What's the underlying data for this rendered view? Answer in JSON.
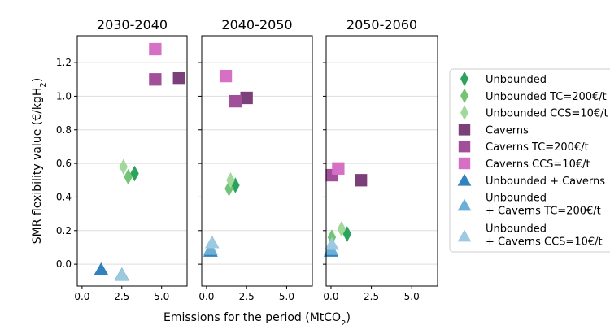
{
  "figure": {
    "ylabel_main": "SMR flexibility value (€/kgH",
    "ylabel_sub": "2",
    "ylabel_end": ")",
    "xlabel_main": "Emissions for the period (MtCO",
    "xlabel_sub": "2",
    "xlabel_end": ")"
  },
  "colors": {
    "unbounded": "#2ca25f",
    "unbounded_tc": "#74c476",
    "unbounded_ccs": "#a1d99b",
    "caverns": "#7b3f7a",
    "caverns_tc": "#a24f9a",
    "caverns_ccs": "#d670c4",
    "uc": "#3182bd",
    "uc_tc": "#6baed6",
    "uc_ccs": "#9ecae1",
    "grid": "#dddddd",
    "axes": "#000000"
  },
  "legend": {
    "placement": "right",
    "entries": [
      {
        "lines": [
          "Unbounded"
        ],
        "marker": "diamond",
        "color": "#2ca25f"
      },
      {
        "lines": [
          "Unbounded TC=200€/t"
        ],
        "marker": "diamond",
        "color": "#74c476"
      },
      {
        "lines": [
          "Unbounded CCS=10€/t"
        ],
        "marker": "diamond",
        "color": "#a1d99b"
      },
      {
        "lines": [
          "Caverns"
        ],
        "marker": "square",
        "color": "#7b3f7a"
      },
      {
        "lines": [
          "Caverns TC=200€/t"
        ],
        "marker": "square",
        "color": "#a24f9a"
      },
      {
        "lines": [
          "Caverns CCS=10€/t"
        ],
        "marker": "square",
        "color": "#d670c4"
      },
      {
        "lines": [
          "Unbounded + Caverns"
        ],
        "marker": "triangle",
        "color": "#3182bd"
      },
      {
        "lines": [
          "Unbounded",
          "+ Caverns TC=200€/t"
        ],
        "marker": "triangle",
        "color": "#6baed6"
      },
      {
        "lines": [
          "Unbounded",
          "+ Caverns CCS=10€/t"
        ],
        "marker": "triangle",
        "color": "#9ecae1"
      }
    ]
  },
  "chart_data": [
    {
      "type": "scatter",
      "title": "2030-2040",
      "xlim": [
        -0.3,
        6.6
      ],
      "ylim": [
        -0.13,
        1.36
      ],
      "xticks": [
        "0.0",
        "2.5",
        "5.0"
      ],
      "yticks": [
        "0.0",
        "0.2",
        "0.4",
        "0.6",
        "0.8",
        "1.0",
        "1.2"
      ],
      "grid": "horizontal",
      "series": [
        {
          "name": "Unbounded",
          "marker": "diamond",
          "color": "#2ca25f",
          "points": [
            [
              3.3,
              0.54
            ]
          ]
        },
        {
          "name": "Unbounded TC=200€/t",
          "marker": "diamond",
          "color": "#74c476",
          "points": [
            [
              2.9,
              0.52
            ]
          ]
        },
        {
          "name": "Unbounded CCS=10€/t",
          "marker": "diamond",
          "color": "#a1d99b",
          "points": [
            [
              2.6,
              0.58
            ]
          ]
        },
        {
          "name": "Caverns",
          "marker": "square",
          "color": "#7b3f7a",
          "points": [
            [
              6.1,
              1.11
            ]
          ]
        },
        {
          "name": "Caverns TC=200€/t",
          "marker": "square",
          "color": "#a24f9a",
          "points": [
            [
              4.6,
              1.1
            ]
          ]
        },
        {
          "name": "Caverns CCS=10€/t",
          "marker": "square",
          "color": "#d670c4",
          "points": [
            [
              4.6,
              1.28
            ]
          ]
        },
        {
          "name": "Unbounded + Caverns",
          "marker": "triangle",
          "color": "#3182bd",
          "points": [
            [
              1.2,
              -0.03
            ]
          ]
        },
        {
          "name": "Unbounded + Caverns TC=200€/t",
          "marker": "triangle",
          "color": "#6baed6",
          "points": [
            [
              2.5,
              -0.06
            ]
          ]
        },
        {
          "name": "Unbounded + Caverns CCS=10€/t",
          "marker": "triangle",
          "color": "#9ecae1",
          "points": [
            [
              2.5,
              -0.065
            ]
          ]
        }
      ]
    },
    {
      "type": "scatter",
      "title": "2040-2050",
      "xlim": [
        -0.3,
        6.6
      ],
      "ylim": [
        -0.13,
        1.36
      ],
      "xticks": [
        "0.0",
        "2.5",
        "5.0"
      ],
      "yticks": [],
      "grid": "horizontal",
      "series": [
        {
          "name": "Unbounded",
          "marker": "diamond",
          "color": "#2ca25f",
          "points": [
            [
              1.8,
              0.47
            ]
          ]
        },
        {
          "name": "Unbounded TC=200€/t",
          "marker": "diamond",
          "color": "#74c476",
          "points": [
            [
              1.4,
              0.45
            ]
          ]
        },
        {
          "name": "Unbounded CCS=10€/t",
          "marker": "diamond",
          "color": "#a1d99b",
          "points": [
            [
              1.5,
              0.5
            ]
          ]
        },
        {
          "name": "Caverns",
          "marker": "square",
          "color": "#7b3f7a",
          "points": [
            [
              2.5,
              0.99
            ]
          ]
        },
        {
          "name": "Caverns TC=200€/t",
          "marker": "square",
          "color": "#a24f9a",
          "points": [
            [
              1.8,
              0.97
            ]
          ]
        },
        {
          "name": "Caverns CCS=10€/t",
          "marker": "square",
          "color": "#d670c4",
          "points": [
            [
              1.2,
              1.12
            ]
          ]
        },
        {
          "name": "Unbounded + Caverns",
          "marker": "triangle",
          "color": "#3182bd",
          "points": [
            [
              0.25,
              0.08
            ]
          ]
        },
        {
          "name": "Unbounded + Caverns TC=200€/t",
          "marker": "triangle",
          "color": "#6baed6",
          "points": [
            [
              0.25,
              0.09
            ]
          ]
        },
        {
          "name": "Unbounded + Caverns CCS=10€/t",
          "marker": "triangle",
          "color": "#9ecae1",
          "points": [
            [
              0.35,
              0.13
            ]
          ]
        }
      ]
    },
    {
      "type": "scatter",
      "title": "2050-2060",
      "xlim": [
        -0.3,
        6.6
      ],
      "ylim": [
        -0.13,
        1.36
      ],
      "xticks": [
        "0.0",
        "2.5",
        "5.0"
      ],
      "yticks": [],
      "grid": "horizontal",
      "series": [
        {
          "name": "Unbounded",
          "marker": "diamond",
          "color": "#2ca25f",
          "points": [
            [
              1.0,
              0.18
            ]
          ]
        },
        {
          "name": "Unbounded TC=200€/t",
          "marker": "diamond",
          "color": "#74c476",
          "points": [
            [
              0.05,
              0.16
            ]
          ]
        },
        {
          "name": "Unbounded CCS=10€/t",
          "marker": "diamond",
          "color": "#a1d99b",
          "points": [
            [
              0.65,
              0.21
            ]
          ]
        },
        {
          "name": "Caverns",
          "marker": "square",
          "color": "#7b3f7a",
          "points": [
            [
              1.85,
              0.5
            ]
          ]
        },
        {
          "name": "Caverns TC=200€/t",
          "marker": "square",
          "color": "#a24f9a",
          "points": [
            [
              0.05,
              0.53
            ]
          ]
        },
        {
          "name": "Caverns CCS=10€/t",
          "marker": "square",
          "color": "#d670c4",
          "points": [
            [
              0.45,
              0.57
            ]
          ]
        },
        {
          "name": "Unbounded + Caverns",
          "marker": "triangle",
          "color": "#3182bd",
          "points": [
            [
              0.0,
              0.08
            ]
          ]
        },
        {
          "name": "Unbounded + Caverns TC=200€/t",
          "marker": "triangle",
          "color": "#6baed6",
          "points": [
            [
              0.0,
              0.09
            ]
          ]
        },
        {
          "name": "Unbounded + Caverns CCS=10€/t",
          "marker": "triangle",
          "color": "#9ecae1",
          "points": [
            [
              0.05,
              0.12
            ]
          ]
        }
      ]
    }
  ]
}
